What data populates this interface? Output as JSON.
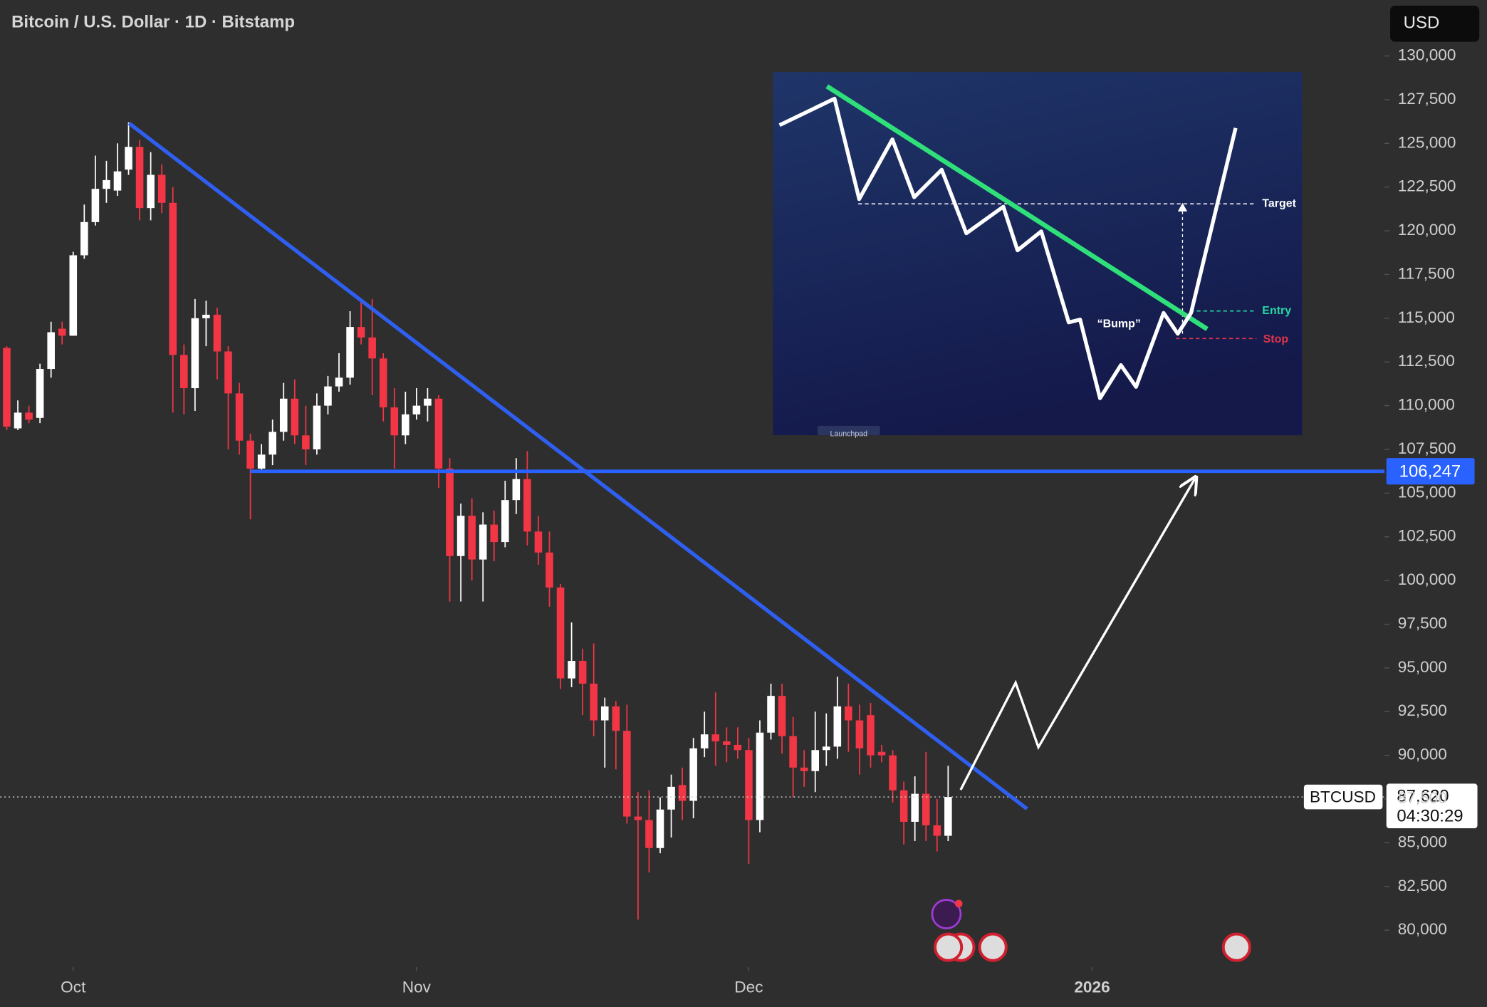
{
  "chart_data": {
    "type": "candlestick",
    "title": "Bitcoin / U.S. Dollar · 1D · Bitstamp",
    "currency_button": "USD",
    "symbol_label": "BTCUSD",
    "countdown": "04:30:29",
    "categories": [
      null,
      null,
      null,
      null,
      null,
      null,
      null,
      null,
      null,
      null,
      null,
      null,
      null,
      null,
      null,
      null,
      null,
      null,
      null,
      null,
      null,
      null,
      null,
      null,
      null,
      null,
      null,
      null,
      null,
      null,
      null,
      null,
      null,
      null,
      null,
      null,
      null,
      null,
      null,
      null,
      null,
      null,
      null,
      null,
      null,
      null,
      null,
      null,
      null,
      null,
      null,
      null,
      null,
      null,
      null,
      null,
      null,
      null,
      null,
      null,
      null,
      null,
      null,
      null,
      null,
      null,
      null,
      null,
      null,
      null,
      null,
      null,
      null,
      null,
      null,
      null,
      null,
      null,
      null,
      null,
      null,
      null,
      null,
      null,
      null,
      null
    ],
    "open": [
      113300,
      108700,
      109600,
      109300,
      112100,
      114400,
      114000,
      118600,
      120500,
      122400,
      122300,
      123500,
      124800,
      121300,
      123200,
      121600,
      112900,
      111000,
      115000,
      115200,
      113100,
      110700,
      108000,
      106400,
      107200,
      108500,
      110400,
      108300,
      107500,
      110000,
      111100,
      111600,
      114500,
      113900,
      112700,
      109900,
      108300,
      109500,
      110000,
      110400,
      106400,
      101400,
      103700,
      101200,
      103200,
      102200,
      104600,
      105800,
      102800,
      101600,
      99600,
      94400,
      95400,
      94100,
      92000,
      92800,
      91400,
      86500,
      86300,
      84700,
      86900,
      88300,
      87400,
      90400,
      91200,
      90800,
      90600,
      90300,
      86300,
      91300,
      93400,
      91100,
      89300,
      89100,
      90300,
      90500,
      92800,
      92000,
      92300,
      90200,
      90000,
      88000,
      86200,
      87800,
      86000,
      85400
    ],
    "high": [
      113400,
      110300,
      110000,
      112400,
      114800,
      114800,
      118800,
      121500,
      124300,
      124000,
      125000,
      126200,
      125200,
      124500,
      123800,
      122500,
      113500,
      116100,
      116000,
      115600,
      113400,
      111300,
      108400,
      107800,
      109200,
      111300,
      111500,
      110000,
      110700,
      111700,
      113000,
      115400,
      116100,
      116100,
      113000,
      111000,
      110800,
      111000,
      111000,
      110600,
      107000,
      104400,
      104700,
      103900,
      104000,
      105700,
      107000,
      107400,
      103700,
      102800,
      99800,
      97600,
      96100,
      96400,
      93300,
      93100,
      92900,
      87900,
      88000,
      87600,
      88900,
      89300,
      91000,
      92500,
      93600,
      91600,
      91600,
      91000,
      92000,
      94100,
      94100,
      92200,
      90300,
      92500,
      92400,
      94500,
      94100,
      92900,
      93000,
      90600,
      90300,
      88500,
      88800,
      90200,
      87500,
      89400
    ],
    "low": [
      108600,
      108600,
      109000,
      109000,
      111600,
      113500,
      114000,
      118400,
      120300,
      121600,
      122000,
      123200,
      120600,
      120600,
      121000,
      109600,
      109500,
      109700,
      113400,
      111500,
      107500,
      107200,
      103500,
      106200,
      106600,
      108000,
      107800,
      106600,
      107200,
      109500,
      110800,
      111200,
      113500,
      110600,
      109100,
      106400,
      107800,
      109200,
      109100,
      105300,
      98800,
      98800,
      100000,
      98800,
      101100,
      101900,
      103800,
      102000,
      100900,
      98500,
      93800,
      93900,
      92300,
      91100,
      89300,
      89200,
      86100,
      80600,
      83300,
      84400,
      85300,
      86300,
      86400,
      89900,
      89400,
      89600,
      89800,
      83800,
      85600,
      90900,
      90100,
      87600,
      88200,
      87900,
      89400,
      89800,
      90200,
      88900,
      89300,
      89600,
      87300,
      84900,
      85100,
      85100,
      84500,
      85100
    ],
    "close": [
      108800,
      109600,
      109200,
      112100,
      114200,
      114000,
      118600,
      120500,
      122400,
      122900,
      123400,
      124800,
      121300,
      123200,
      121600,
      112900,
      111000,
      115000,
      115200,
      113100,
      110700,
      108000,
      106400,
      107200,
      108500,
      110400,
      108300,
      107500,
      110000,
      111100,
      111600,
      114500,
      113900,
      112700,
      109900,
      108300,
      109500,
      110000,
      110400,
      106400,
      101400,
      103700,
      101200,
      103200,
      102200,
      104600,
      105800,
      102800,
      101600,
      99600,
      94400,
      95400,
      94100,
      92000,
      92800,
      91400,
      86500,
      86300,
      84700,
      86900,
      88200,
      87400,
      90400,
      91200,
      90800,
      90600,
      90300,
      86300,
      91300,
      93400,
      91100,
      89300,
      89100,
      90300,
      90500,
      92800,
      92000,
      90400,
      90000,
      90000,
      88000,
      86200,
      87800,
      86000,
      85400,
      87620
    ],
    "up_color": "#ffffff",
    "down_color": "#f23645",
    "ylim": [
      77885,
      133200
    ],
    "yticks": [
      {
        "value": 80000,
        "label": "80,000"
      },
      {
        "value": 82500,
        "label": "82,500"
      },
      {
        "value": 85000,
        "label": "85,000"
      },
      {
        "value": 87500,
        "label": "87,500"
      },
      {
        "value": 90000,
        "label": "90,000"
      },
      {
        "value": 92500,
        "label": "92,500"
      },
      {
        "value": 95000,
        "label": "95,000"
      },
      {
        "value": 97500,
        "label": "97,500"
      },
      {
        "value": 100000,
        "label": "100,000"
      },
      {
        "value": 102500,
        "label": "102,500"
      },
      {
        "value": 105000,
        "label": "105,000"
      },
      {
        "value": 107500,
        "label": "107,500"
      },
      {
        "value": 110000,
        "label": "110,000"
      },
      {
        "value": 112500,
        "label": "112,500"
      },
      {
        "value": 115000,
        "label": "115,000"
      },
      {
        "value": 117500,
        "label": "117,500"
      },
      {
        "value": 120000,
        "label": "120,000"
      },
      {
        "value": 122500,
        "label": "122,500"
      },
      {
        "value": 125000,
        "label": "125,000"
      },
      {
        "value": 127500,
        "label": "127,500"
      },
      {
        "value": 130000,
        "label": "130,000"
      }
    ],
    "xlim": [
      -0.6,
      124.4
    ],
    "xticks": [
      {
        "value": 6,
        "label": "Oct"
      },
      {
        "value": 37,
        "label": "Nov"
      },
      {
        "value": 67,
        "label": "Dec"
      },
      {
        "value": 98,
        "label": "2026"
      }
    ],
    "horizontal_line": {
      "value": 106247,
      "label": "106,247",
      "color": "#2962ff"
    },
    "last_price": {
      "value": 87620,
      "label": "87,620"
    },
    "inset": {
      "target": "Target",
      "entry": "Entry",
      "stop": "Stop",
      "bump": "“Bump”",
      "launchpad": "Launchpad"
    }
  }
}
